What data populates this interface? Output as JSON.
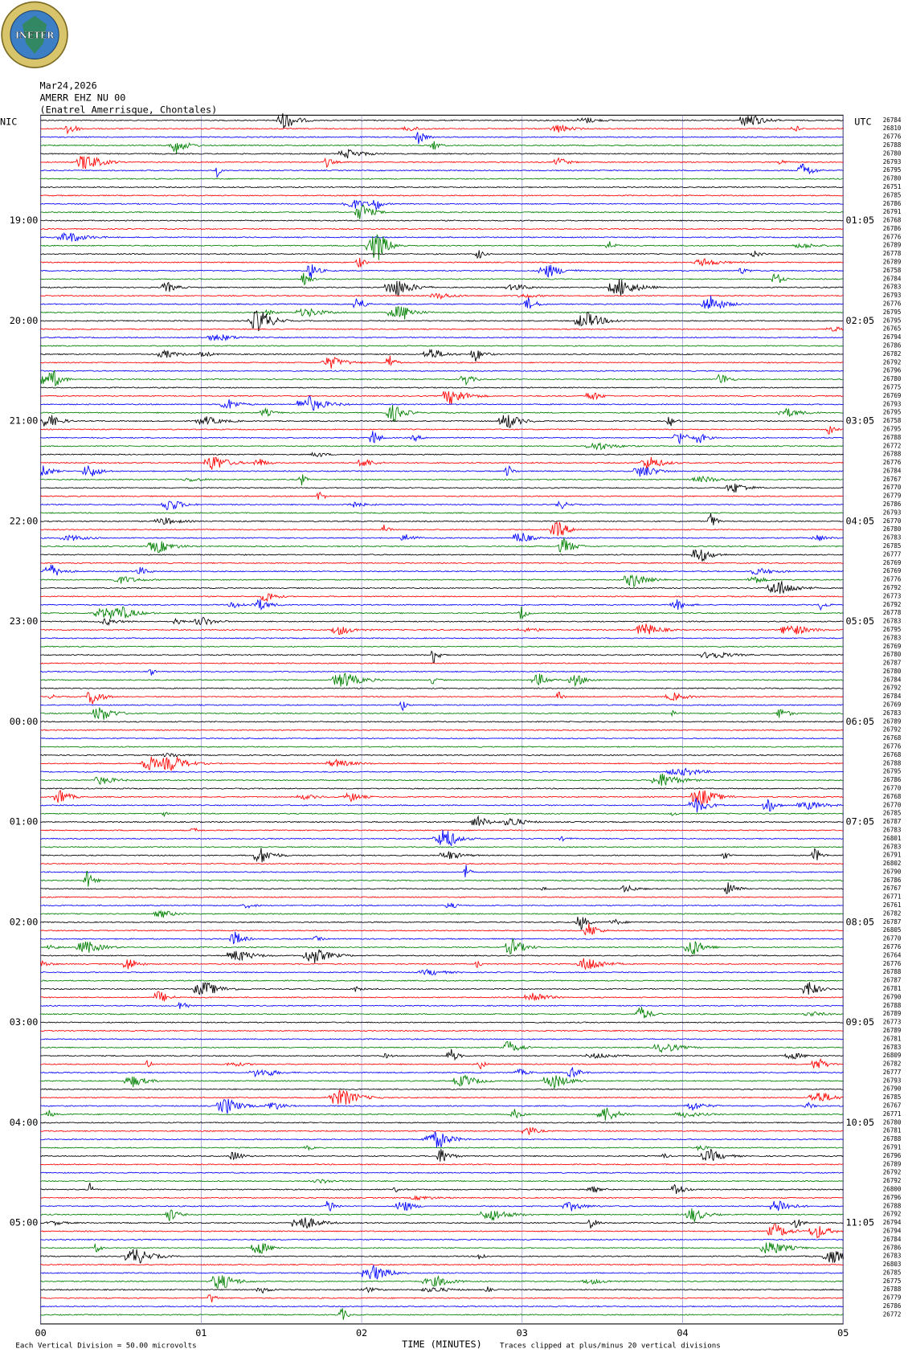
{
  "header": {
    "logo_text": "INETER",
    "date": "Mar24,2026",
    "station": "AMERR EHZ NU 00",
    "location": "(Enatrel Amerrisque, Chontales)",
    "left_zone": "NIC",
    "right_zone": "UTC"
  },
  "trace_colors": [
    "#000000",
    "#ff0000",
    "#0000ff",
    "#008000"
  ],
  "left_time_labels": [
    "19:00",
    "20:00",
    "21:00",
    "22:00",
    "23:00",
    "00:00",
    "01:00",
    "02:00",
    "03:00",
    "04:00",
    "05:00"
  ],
  "right_time_labels": [
    "01:05",
    "02:05",
    "03:05",
    "04:05",
    "05:05",
    "06:05",
    "07:05",
    "08:05",
    "09:05",
    "10:05",
    "11:05"
  ],
  "trace_ids": [
    "26784",
    "26810",
    "26776",
    "26788",
    "26780",
    "26793",
    "26795",
    "26780",
    "26751",
    "26785",
    "26786",
    "26791",
    "26768",
    "26786",
    "26776",
    "26789",
    "26778",
    "26789",
    "26758",
    "26784",
    "26783",
    "26793",
    "26776",
    "26795",
    "26795",
    "26765",
    "26794",
    "26786",
    "26782",
    "26792",
    "26796",
    "26780",
    "26775",
    "26769",
    "26793",
    "26795",
    "26758",
    "26795",
    "26788",
    "26772",
    "26788",
    "26776",
    "26784",
    "26767",
    "26770",
    "26779",
    "26786",
    "26793",
    "26770",
    "26780",
    "26783",
    "26785",
    "26777",
    "26769",
    "26769",
    "26776",
    "26792",
    "26773",
    "26792",
    "26778",
    "26783",
    "26795",
    "26783",
    "26769",
    "26780",
    "26787",
    "26780",
    "26784",
    "26792",
    "26784",
    "26769",
    "26783",
    "26789",
    "26792",
    "26768",
    "26776",
    "26768",
    "26788",
    "26795",
    "26786",
    "26770",
    "26768",
    "26770",
    "26785",
    "26787",
    "26783",
    "26801",
    "26783",
    "26791",
    "26802",
    "26790",
    "26786",
    "26767",
    "26771",
    "26761",
    "26782",
    "26787",
    "26805",
    "26770",
    "26776",
    "26764",
    "26776",
    "26788",
    "26787",
    "26781",
    "26790",
    "26788",
    "26789",
    "26773",
    "26789",
    "26781",
    "26783",
    "26809",
    "26782",
    "26777",
    "26793",
    "26790",
    "26785",
    "26767",
    "26771",
    "26780",
    "26781",
    "26788",
    "26791",
    "26796",
    "26789",
    "26792",
    "26792",
    "26800",
    "26796",
    "26788",
    "26792",
    "26794",
    "26794",
    "26784",
    "26786",
    "26783",
    "26803",
    "26785",
    "26775",
    "26788",
    "26779",
    "26786",
    "26772"
  ],
  "x_axis": {
    "ticks": [
      "00",
      "01",
      "02",
      "03",
      "04",
      "05"
    ],
    "title": "TIME (MINUTES)"
  },
  "footer": {
    "scale": "Each Vertical Division =   50.00 microvolts",
    "clip": "Traces clipped at plus/minus 20 vertical divisions"
  }
}
